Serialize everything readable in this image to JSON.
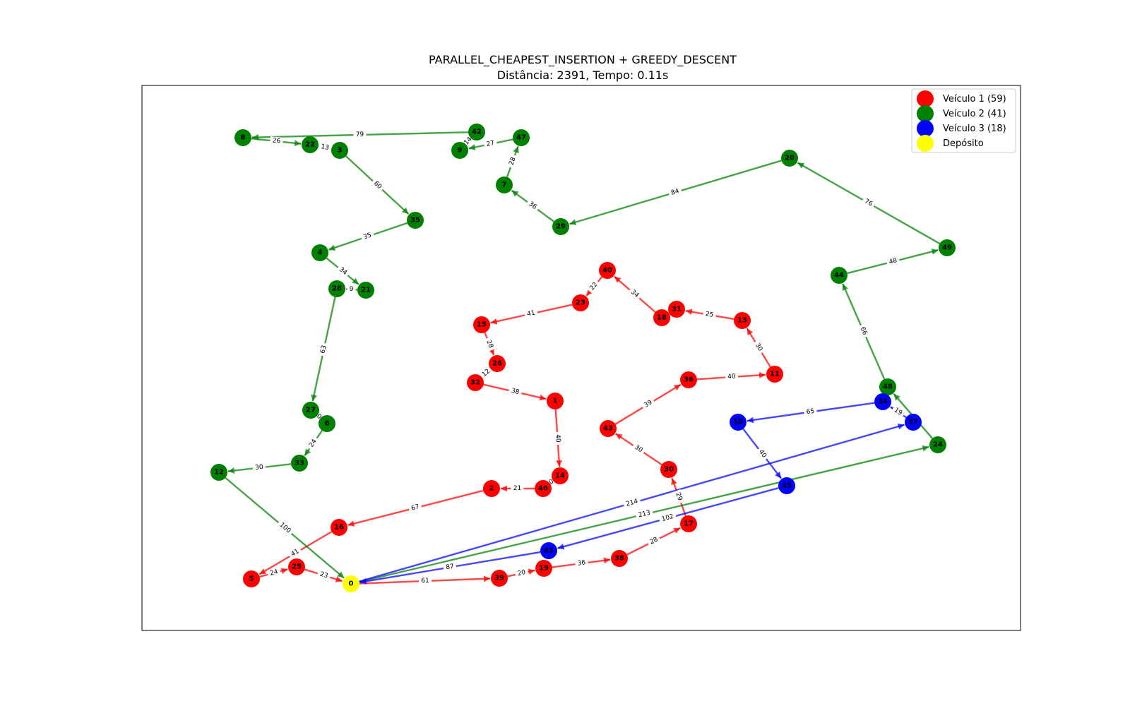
{
  "title": {
    "line1": "PARALLEL_CHEAPEST_INSERTION + GREEDY_DESCENT",
    "line2": "Distância: 2391, Tempo: 0.11s"
  },
  "colors": {
    "v1": "#ff0000",
    "v2": "#008000",
    "v3": "#0000ff",
    "depot": "#ffff00"
  },
  "legend": [
    {
      "label": "Veículo 1 (59)",
      "color": "#ff0000"
    },
    {
      "label": "Veículo 2 (41)",
      "color": "#008000"
    },
    {
      "label": "Veículo 3 (18)",
      "color": "#0000ff"
    },
    {
      "label": "Depósito",
      "color": "#ffff00"
    }
  ],
  "nodes": [
    {
      "id": "0",
      "group": "depot"
    },
    {
      "id": "1",
      "group": "v1"
    },
    {
      "id": "2",
      "group": "v1"
    },
    {
      "id": "5",
      "group": "v1"
    },
    {
      "id": "11",
      "group": "v1"
    },
    {
      "id": "13",
      "group": "v1"
    },
    {
      "id": "14",
      "group": "v1"
    },
    {
      "id": "15",
      "group": "v1"
    },
    {
      "id": "16",
      "group": "v1"
    },
    {
      "id": "17",
      "group": "v1"
    },
    {
      "id": "18",
      "group": "v1"
    },
    {
      "id": "19",
      "group": "v1"
    },
    {
      "id": "23",
      "group": "v1"
    },
    {
      "id": "25",
      "group": "v1"
    },
    {
      "id": "26",
      "group": "v1"
    },
    {
      "id": "30",
      "group": "v1"
    },
    {
      "id": "31",
      "group": "v1"
    },
    {
      "id": "32",
      "group": "v1"
    },
    {
      "id": "36",
      "group": "v1"
    },
    {
      "id": "38",
      "group": "v1"
    },
    {
      "id": "39",
      "group": "v1"
    },
    {
      "id": "40",
      "group": "v1"
    },
    {
      "id": "43",
      "group": "v1"
    },
    {
      "id": "46",
      "group": "v1"
    },
    {
      "id": "3",
      "group": "v2"
    },
    {
      "id": "4",
      "group": "v2"
    },
    {
      "id": "6",
      "group": "v2"
    },
    {
      "id": "7",
      "group": "v2"
    },
    {
      "id": "8",
      "group": "v2"
    },
    {
      "id": "9",
      "group": "v2"
    },
    {
      "id": "12",
      "group": "v2"
    },
    {
      "id": "20",
      "group": "v2"
    },
    {
      "id": "21",
      "group": "v2"
    },
    {
      "id": "22",
      "group": "v2"
    },
    {
      "id": "24",
      "group": "v2"
    },
    {
      "id": "27",
      "group": "v2"
    },
    {
      "id": "28",
      "group": "v2"
    },
    {
      "id": "29",
      "group": "v2"
    },
    {
      "id": "33",
      "group": "v2"
    },
    {
      "id": "35",
      "group": "v2"
    },
    {
      "id": "42",
      "group": "v2"
    },
    {
      "id": "44",
      "group": "v2"
    },
    {
      "id": "47",
      "group": "v2"
    },
    {
      "id": "48",
      "group": "v2"
    },
    {
      "id": "49",
      "group": "v2"
    },
    {
      "id": "10",
      "group": "v3"
    },
    {
      "id": "34",
      "group": "v3"
    },
    {
      "id": "37",
      "group": "v3"
    },
    {
      "id": "41",
      "group": "v3"
    },
    {
      "id": "45",
      "group": "v3"
    }
  ],
  "edges": [
    {
      "from": "0",
      "to": "39",
      "w": "61",
      "group": "v1"
    },
    {
      "from": "39",
      "to": "19",
      "w": "20",
      "group": "v1"
    },
    {
      "from": "19",
      "to": "38",
      "w": "36",
      "group": "v1"
    },
    {
      "from": "38",
      "to": "17",
      "w": "28",
      "group": "v1"
    },
    {
      "from": "17",
      "to": "30",
      "w": "29",
      "group": "v1"
    },
    {
      "from": "30",
      "to": "43",
      "w": "30",
      "group": "v1"
    },
    {
      "from": "43",
      "to": "36",
      "w": "39",
      "group": "v1"
    },
    {
      "from": "36",
      "to": "11",
      "w": "40",
      "group": "v1"
    },
    {
      "from": "11",
      "to": "13",
      "w": "30",
      "group": "v1"
    },
    {
      "from": "13",
      "to": "31",
      "w": "25",
      "group": "v1"
    },
    {
      "from": "31",
      "to": "18",
      "w": "",
      "group": "v1"
    },
    {
      "from": "18",
      "to": "40",
      "w": "34",
      "group": "v1"
    },
    {
      "from": "40",
      "to": "23",
      "w": "22",
      "group": "v1"
    },
    {
      "from": "23",
      "to": "15",
      "w": "41",
      "group": "v1"
    },
    {
      "from": "15",
      "to": "26",
      "w": "28",
      "group": "v1"
    },
    {
      "from": "26",
      "to": "32",
      "w": "12",
      "group": "v1"
    },
    {
      "from": "32",
      "to": "1",
      "w": "38",
      "group": "v1"
    },
    {
      "from": "1",
      "to": "14",
      "w": "40",
      "group": "v1"
    },
    {
      "from": "14",
      "to": "46",
      "w": "0",
      "group": "v1"
    },
    {
      "from": "46",
      "to": "2",
      "w": "21",
      "group": "v1"
    },
    {
      "from": "2",
      "to": "16",
      "w": "67",
      "group": "v1"
    },
    {
      "from": "16",
      "to": "5",
      "w": "41",
      "group": "v1"
    },
    {
      "from": "5",
      "to": "25",
      "w": "24",
      "group": "v1"
    },
    {
      "from": "25",
      "to": "0",
      "w": "23",
      "group": "v1"
    },
    {
      "from": "0",
      "to": "24",
      "w": "213",
      "group": "v2"
    },
    {
      "from": "24",
      "to": "48",
      "w": "",
      "group": "v2"
    },
    {
      "from": "48",
      "to": "44",
      "w": "66",
      "group": "v2"
    },
    {
      "from": "44",
      "to": "49",
      "w": "48",
      "group": "v2"
    },
    {
      "from": "49",
      "to": "20",
      "w": "76",
      "group": "v2"
    },
    {
      "from": "20",
      "to": "29",
      "w": "84",
      "group": "v2"
    },
    {
      "from": "29",
      "to": "7",
      "w": "36",
      "group": "v2"
    },
    {
      "from": "7",
      "to": "47",
      "w": "28",
      "group": "v2"
    },
    {
      "from": "47",
      "to": "9",
      "w": "27",
      "group": "v2"
    },
    {
      "from": "9",
      "to": "42",
      "w": "14",
      "group": "v2"
    },
    {
      "from": "42",
      "to": "8",
      "w": "79",
      "group": "v2"
    },
    {
      "from": "8",
      "to": "22",
      "w": "26",
      "group": "v2"
    },
    {
      "from": "22",
      "to": "3",
      "w": "13",
      "group": "v2"
    },
    {
      "from": "3",
      "to": "35",
      "w": "60",
      "group": "v2"
    },
    {
      "from": "35",
      "to": "4",
      "w": "35",
      "group": "v2"
    },
    {
      "from": "4",
      "to": "21",
      "w": "34",
      "group": "v2"
    },
    {
      "from": "21",
      "to": "28",
      "w": "9",
      "group": "v2"
    },
    {
      "from": "28",
      "to": "27",
      "w": "63",
      "group": "v2"
    },
    {
      "from": "27",
      "to": "6",
      "w": "0",
      "group": "v2"
    },
    {
      "from": "6",
      "to": "33",
      "w": "24",
      "group": "v2"
    },
    {
      "from": "33",
      "to": "12",
      "w": "30",
      "group": "v2"
    },
    {
      "from": "12",
      "to": "0",
      "w": "100",
      "group": "v2"
    },
    {
      "from": "0",
      "to": "37",
      "w": "214",
      "group": "v3"
    },
    {
      "from": "37",
      "to": "34",
      "w": "19",
      "group": "v3"
    },
    {
      "from": "34",
      "to": "10",
      "w": "65",
      "group": "v3"
    },
    {
      "from": "10",
      "to": "45",
      "w": "40",
      "group": "v3"
    },
    {
      "from": "45",
      "to": "41",
      "w": "102",
      "group": "v3"
    },
    {
      "from": "41",
      "to": "0",
      "w": "87",
      "group": "v3"
    }
  ]
}
